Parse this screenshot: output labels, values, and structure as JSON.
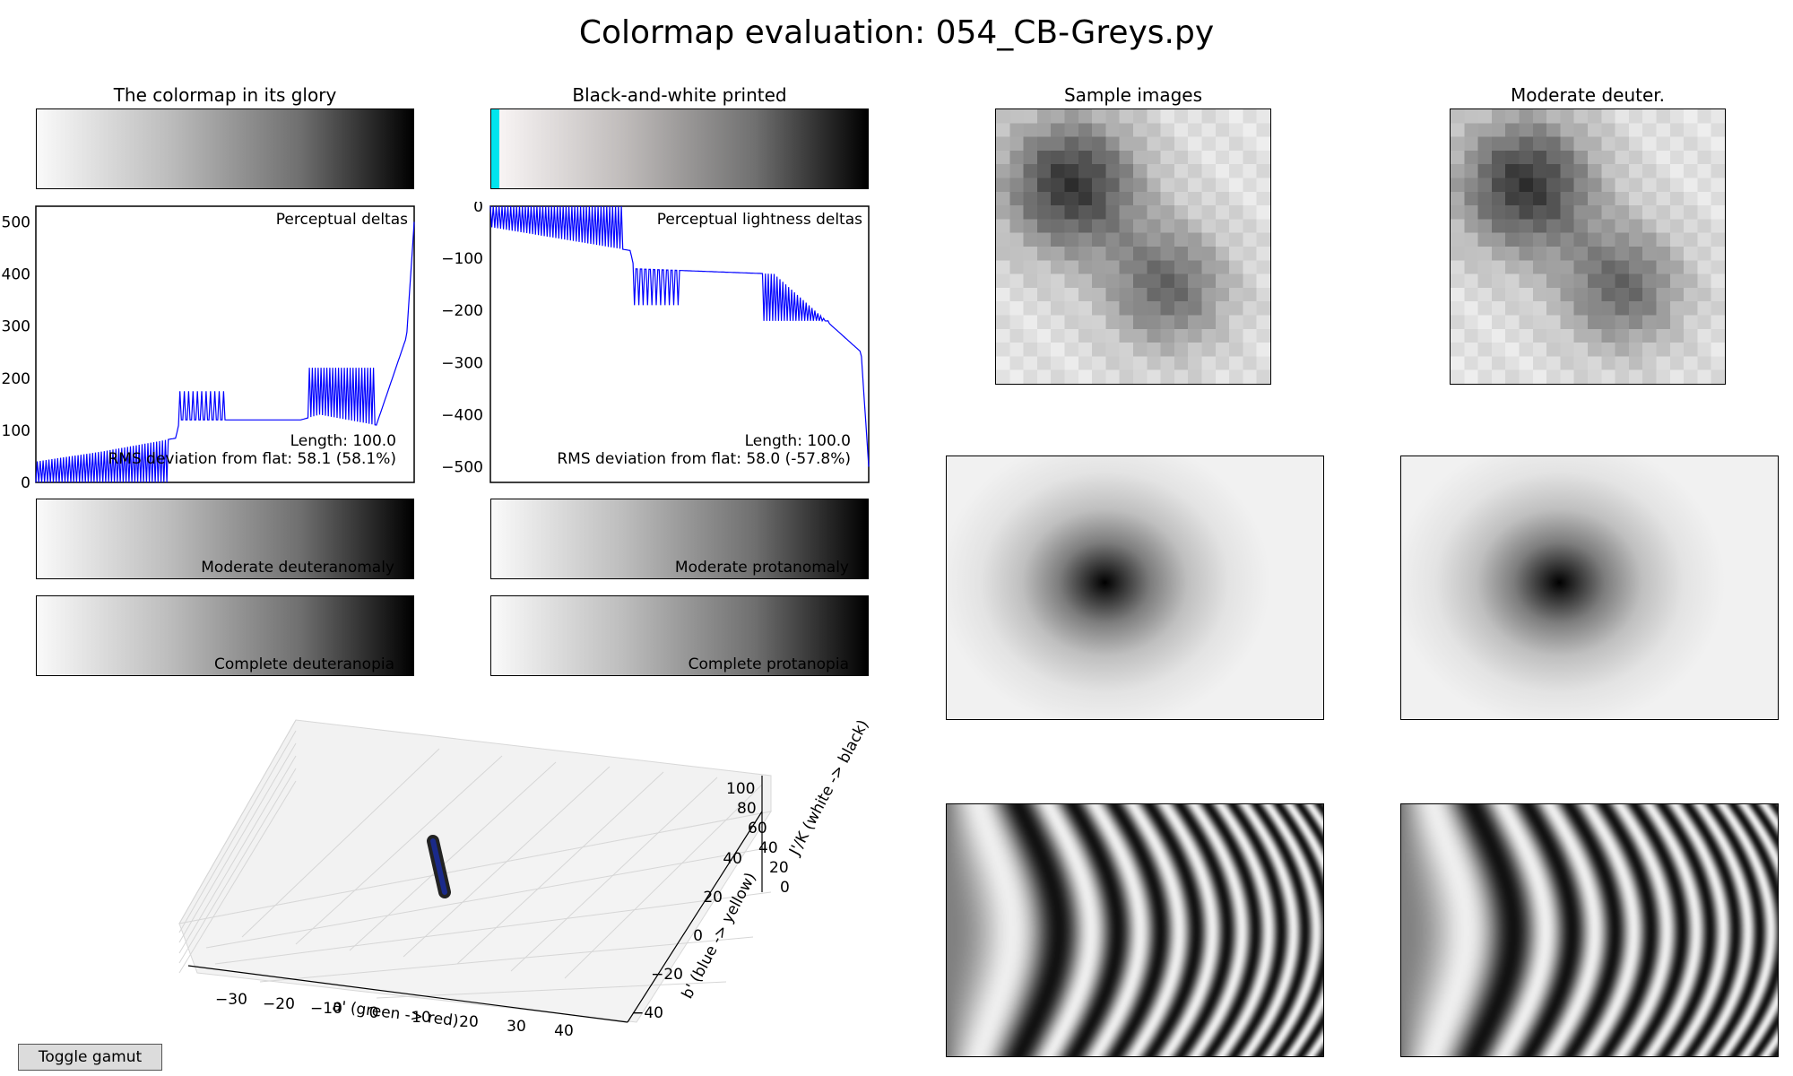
{
  "figure_title": "Colormap evaluation: 054_CB-Greys.py",
  "panels": {
    "glory": "The colormap in its glory",
    "bw": "Black-and-white printed",
    "samples": "Sample images",
    "deuter": "Moderate deuter."
  },
  "cbar_labels": {
    "mod_deuteranomaly": "Moderate deuteranomaly",
    "mod_protanomaly": "Moderate protanomaly",
    "comp_deuteranopia": "Complete deuteranopia",
    "comp_protanopia": "Complete protanopia"
  },
  "button": {
    "toggle_gamut": "Toggle gamut"
  },
  "colors": {
    "line": "#0000ff",
    "cyan": "#00e5ee",
    "points": "#1a2a8a"
  },
  "chart_data": [
    {
      "type": "line",
      "title": "Perceptual deltas",
      "ylim": [
        0,
        530
      ],
      "yticks": [
        "0",
        "100",
        "200",
        "300",
        "400",
        "500"
      ],
      "annotation_length": "Length: 100.0",
      "annotation_rms": "RMS deviation from flat: 58.1 (58.1%)",
      "series": [
        {
          "values_description_free": true,
          "x": [
            0,
            0.18,
            0.37,
            0.38,
            0.7,
            0.75,
            0.9,
            0.98,
            1.0
          ],
          "values": [
            40,
            60,
            85,
            120,
            120,
            130,
            110,
            280,
            500
          ]
        }
      ]
    },
    {
      "type": "line",
      "title": "Perceptual lightness deltas",
      "ylim": [
        -530,
        0
      ],
      "yticks": [
        "0",
        "−100",
        "−200",
        "−300",
        "−400",
        "−500"
      ],
      "annotation_length": "Length: 100.0",
      "annotation_rms": "RMS deviation from flat: 58.0 (-57.8%)",
      "series": [
        {
          "x": [
            0,
            0.37,
            0.38,
            0.75,
            0.98,
            1.0
          ],
          "values": [
            -40,
            -85,
            -120,
            -130,
            -280,
            -500
          ]
        }
      ]
    },
    {
      "type": "scatter",
      "xlabel": "a' (green -> red)",
      "ylabel": "b' (blue -> yellow)",
      "zlabel": "J'/K (white -> black)",
      "xticks": [
        "−30",
        "−20",
        "−10",
        "0",
        "10",
        "20",
        "30",
        "40"
      ],
      "yticks": [
        "−40",
        "−20",
        "0",
        "20",
        "40"
      ],
      "zticks": [
        "0",
        "20",
        "40",
        "60",
        "80",
        "100"
      ]
    }
  ]
}
